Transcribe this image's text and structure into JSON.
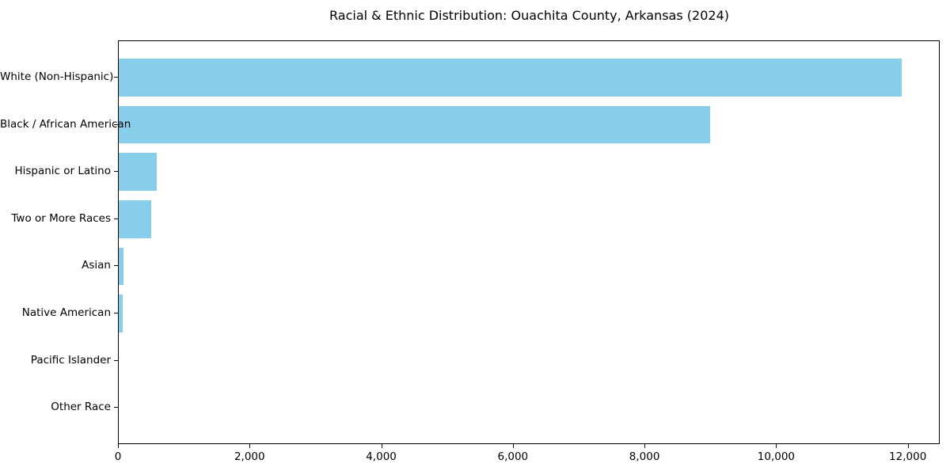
{
  "title": "Racial & Ethnic Distribution: Ouachita County, Arkansas (2024)",
  "chart_data": {
    "type": "bar",
    "orientation": "horizontal",
    "title": "Racial & Ethnic Distribution: Ouachita County, Arkansas (2024)",
    "categories": [
      "White (Non-Hispanic)",
      "Black / African American",
      "Hispanic or Latino",
      "Two or More Races",
      "Asian",
      "Native American",
      "Pacific Islander",
      "Other Race"
    ],
    "values": [
      11890,
      8980,
      575,
      490,
      75,
      55,
      0,
      0
    ],
    "bar_color": "#87CEEB",
    "axis_color": "#000000",
    "text_color": "#000000",
    "background_color": "#ffffff",
    "xlabel": "",
    "ylabel": "",
    "xlim": [
      0,
      12485
    ],
    "x_ticks": [
      0,
      2000,
      4000,
      6000,
      8000,
      10000,
      12000
    ],
    "x_tick_labels": [
      "0",
      "2,000",
      "4,000",
      "6,000",
      "8,000",
      "10,000",
      "12,000"
    ],
    "grid": false,
    "legend": "none"
  }
}
